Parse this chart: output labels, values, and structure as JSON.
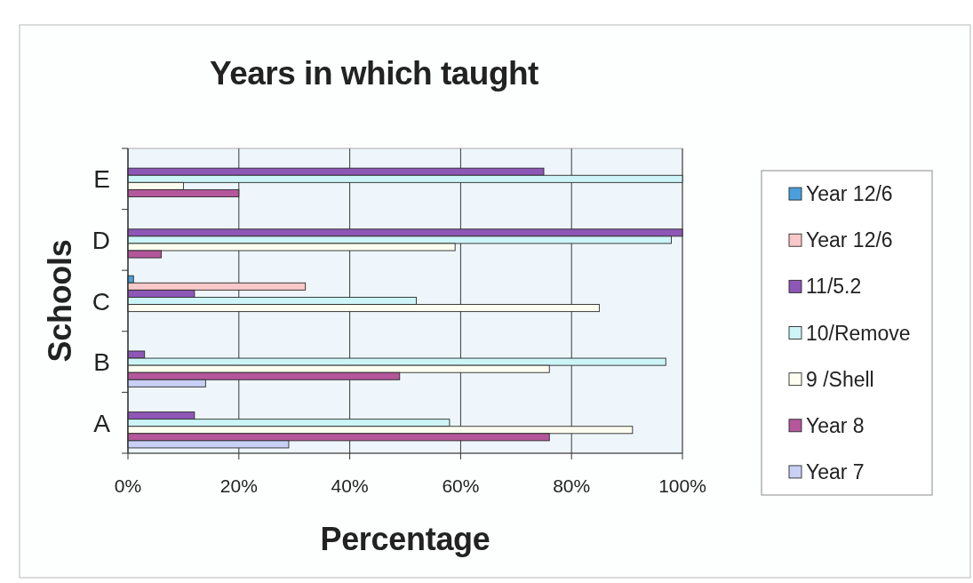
{
  "chart_data": {
    "type": "bar",
    "orientation": "horizontal",
    "title": "Years in which taught",
    "xlabel": "Percentage",
    "ylabel": "Schools",
    "categories": [
      "E",
      "D",
      "C",
      "B",
      "A"
    ],
    "series": [
      {
        "name": "Year 12/6",
        "color": "#4a9fdc",
        "values": [
          null,
          null,
          1,
          null,
          null
        ]
      },
      {
        "name": "Year 12/6",
        "color": "#f9c8c8",
        "values": [
          null,
          null,
          32,
          null,
          null
        ]
      },
      {
        "name": "11/5.2",
        "color": "#8e56b6",
        "values": [
          75,
          100,
          12,
          3,
          12
        ]
      },
      {
        "name": "10/Remove",
        "color": "#cdf5f8",
        "values": [
          100,
          98,
          52,
          97,
          58
        ]
      },
      {
        "name": "9 /Shell",
        "color": "#fdfdf0",
        "values": [
          10,
          59,
          85,
          76,
          91
        ]
      },
      {
        "name": "Year 8",
        "color": "#b4579b",
        "values": [
          20,
          6,
          null,
          49,
          76
        ]
      },
      {
        "name": "Year 7",
        "color": "#c9d0f6",
        "values": [
          null,
          null,
          null,
          14,
          29
        ]
      }
    ],
    "xlim": [
      0,
      100
    ],
    "xticks": [
      {
        "value": 0,
        "label": "0%"
      },
      {
        "value": 20,
        "label": "20%"
      },
      {
        "value": 40,
        "label": "40%"
      },
      {
        "value": 60,
        "label": "60%"
      },
      {
        "value": 80,
        "label": "80%"
      },
      {
        "value": 100,
        "label": "100%"
      }
    ],
    "grid": "x",
    "legend": "right"
  }
}
